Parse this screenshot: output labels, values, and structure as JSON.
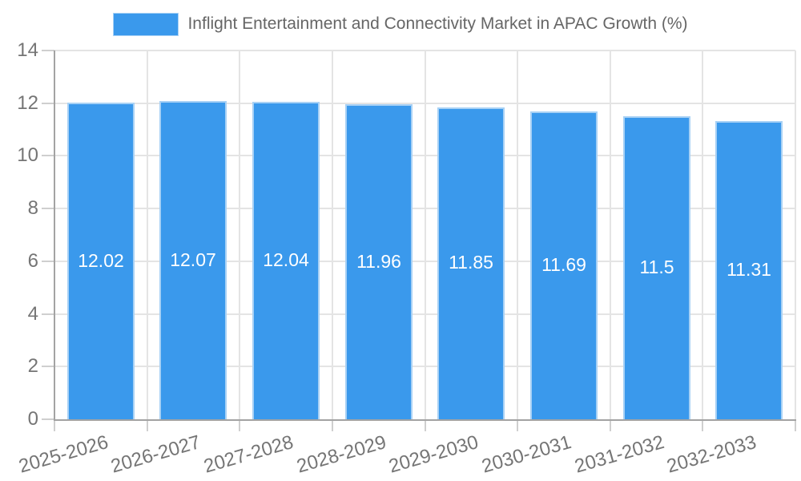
{
  "chart_data": {
    "type": "bar",
    "title": "Inflight Entertainment and Connectivity Market in APAC Growth (%)",
    "categories": [
      "2025-2026",
      "2026-2027",
      "2027-2028",
      "2028-2029",
      "2029-2030",
      "2030-2031",
      "2031-2032",
      "2032-2033"
    ],
    "values": [
      12.02,
      12.07,
      12.04,
      11.96,
      11.85,
      11.69,
      11.5,
      11.31
    ],
    "value_labels": [
      "12.02",
      "12.07",
      "12.04",
      "11.96",
      "11.85",
      "11.69",
      "11.5",
      "11.31"
    ],
    "xlabel": "",
    "ylabel": "",
    "ylim": [
      0,
      14
    ],
    "y_ticks": [
      0,
      2,
      4,
      6,
      8,
      10,
      12,
      14
    ],
    "y_tick_labels": [
      "0",
      "2",
      "4",
      "6",
      "8",
      "10",
      "12",
      "14"
    ],
    "grid": true,
    "legend_position": "top",
    "bar_color": "#3A99EC",
    "bar_border_color": "#A8D1F5",
    "grid_color": "#E4E4E4",
    "tick_color": "#CFCFCF",
    "axis_color": "#A3A3A3",
    "tick_label_color": "#757575",
    "title_color": "#666666",
    "data_label_color": "#FFFFFF",
    "background_color": "#FFFFFF"
  }
}
